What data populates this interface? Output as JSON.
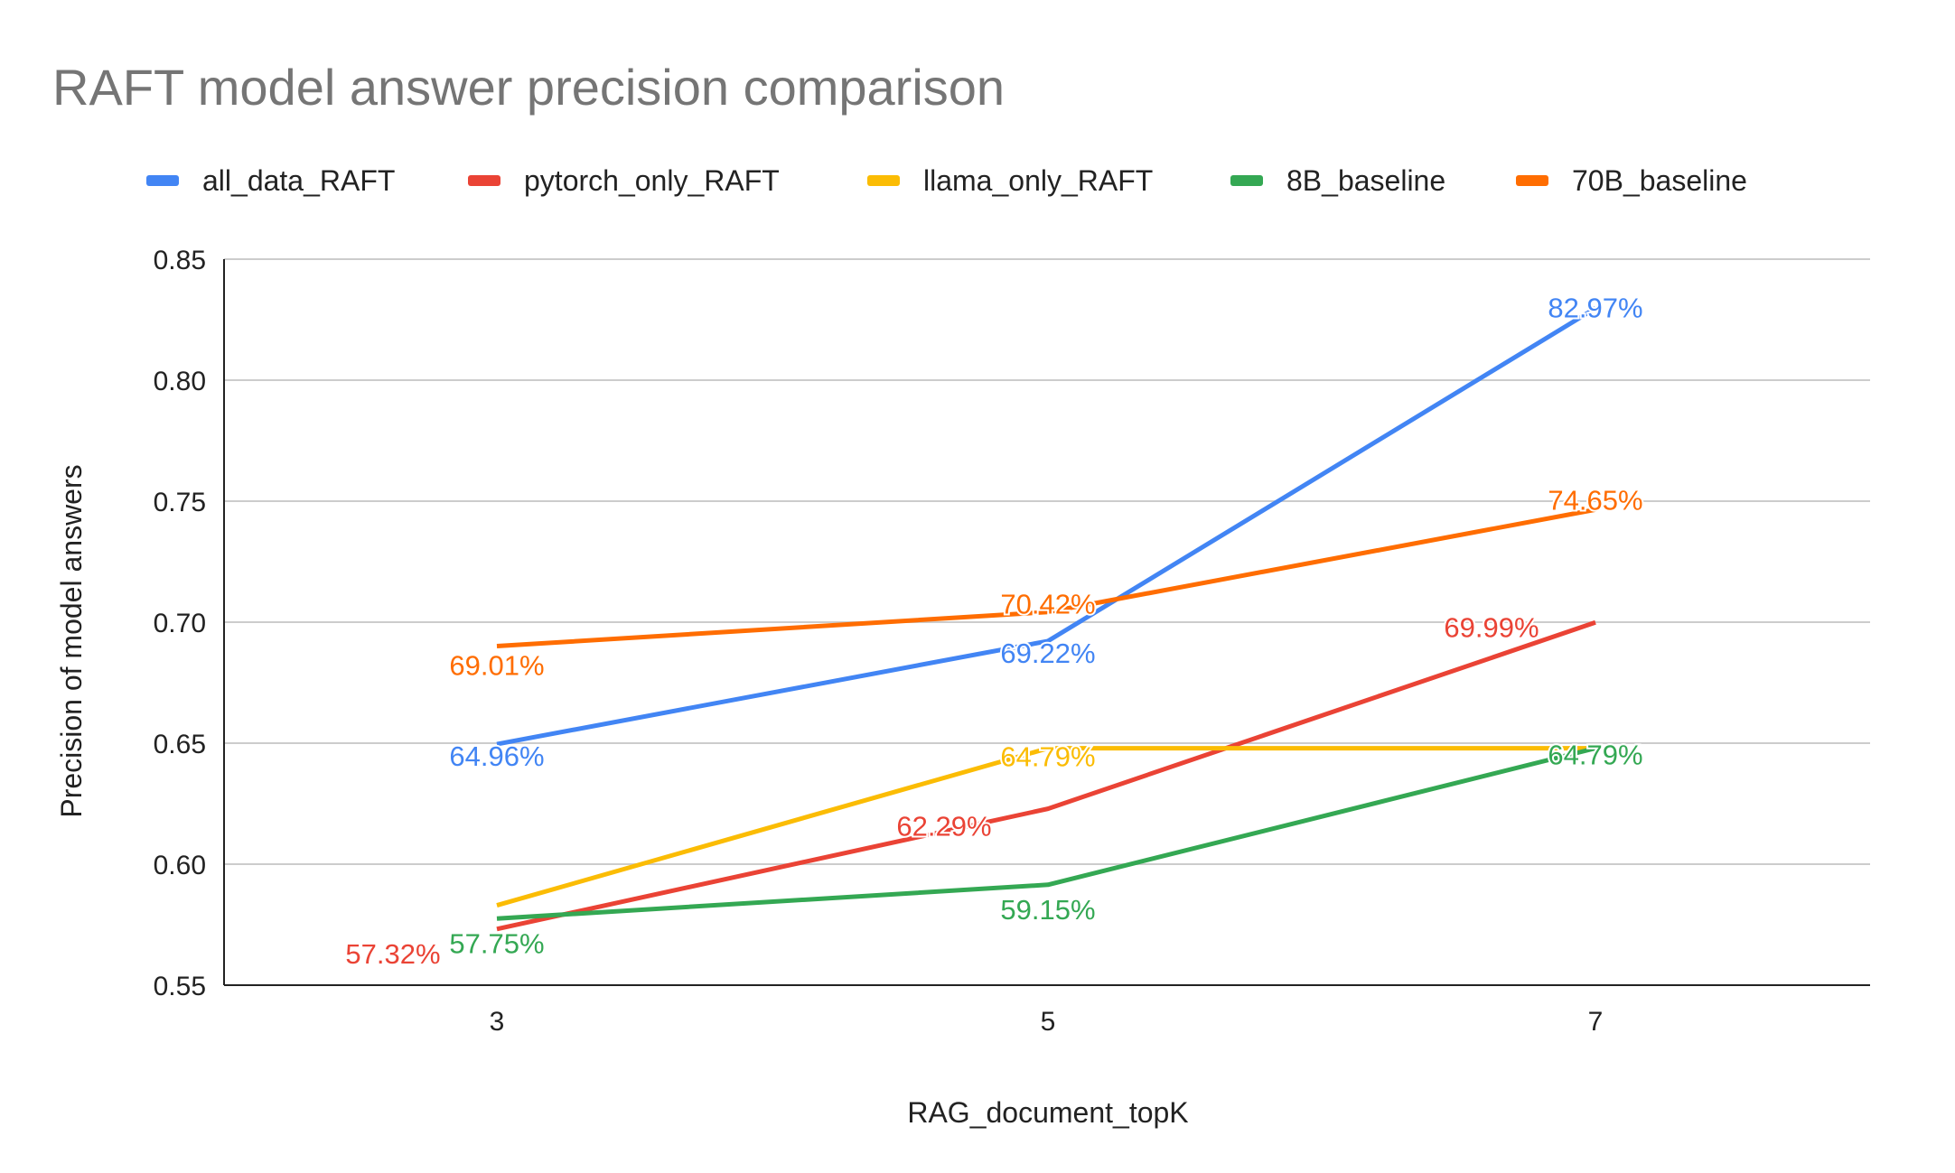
{
  "chart_data": {
    "type": "line",
    "title": "RAFT model answer precision comparison",
    "xlabel": "RAG_document_topK",
    "ylabel": "Precision of model answers",
    "categories": [
      "3",
      "5",
      "7"
    ],
    "ylim": [
      0.55,
      0.85
    ],
    "yticks": [
      "0.55",
      "0.60",
      "0.65",
      "0.70",
      "0.75",
      "0.80",
      "0.85"
    ],
    "grid": true,
    "legend_position": "top",
    "series": [
      {
        "name": "all_data_RAFT",
        "color": "#4285f4",
        "values": [
          0.6496,
          0.6922,
          0.8297
        ],
        "labels": [
          "64.96%",
          "69.22%",
          "82.97%"
        ]
      },
      {
        "name": "pytorch_only_RAFT",
        "color": "#ea4335",
        "values": [
          0.5732,
          0.6229,
          0.6999
        ],
        "labels": [
          "57.32%",
          "62.29%",
          "69.99%"
        ]
      },
      {
        "name": "llama_only_RAFT",
        "color": "#fbbc04",
        "values": [
          0.583,
          0.6479,
          0.6479
        ],
        "labels": [
          null,
          "64.79%",
          null
        ]
      },
      {
        "name": "8B_baseline",
        "color": "#34a853",
        "values": [
          0.5775,
          0.5915,
          0.6479
        ],
        "labels": [
          "57.75%",
          "59.15%",
          "64.79%"
        ]
      },
      {
        "name": "70B_baseline",
        "color": "#ff6d01",
        "values": [
          0.6901,
          0.7042,
          0.7465
        ],
        "labels": [
          "69.01%",
          "70.42%",
          "74.65%"
        ]
      }
    ]
  }
}
